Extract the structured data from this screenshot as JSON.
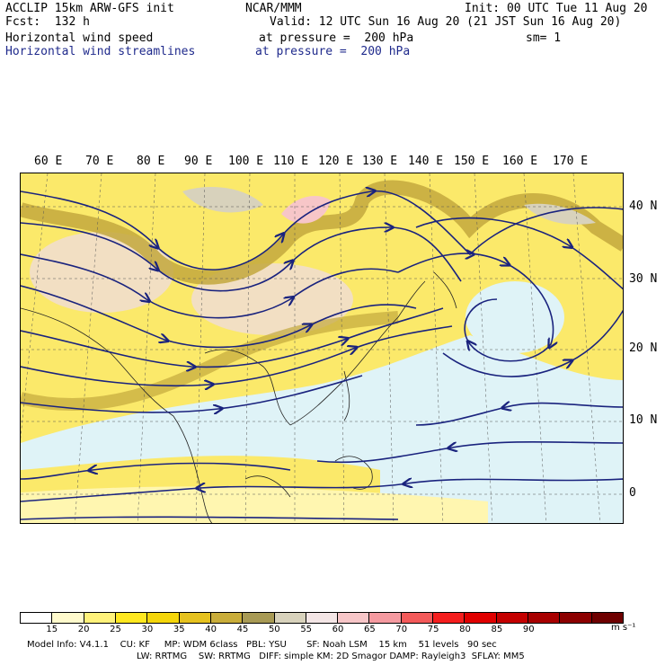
{
  "header": {
    "model_title": "ACCLIP 15km ARW-GFS init",
    "institution": "NCAR/MMM",
    "init": "Init: 00 UTC Tue 11 Aug 20",
    "fcst": "Fcst:  132 h",
    "valid": "Valid: 12 UTC Sun 16 Aug 20 (21 JST Sun 16 Aug 20)",
    "field1_name": "Horizontal wind speed",
    "field1_level": "at pressure =  200 hPa",
    "smoothing": "sm= 1",
    "field2_name": "Horizontal wind streamlines",
    "field2_level": "at pressure =  200 hPa"
  },
  "map": {
    "lon_labels": [
      "60 E",
      "70 E",
      "80 E",
      "90 E",
      "100 E",
      "110 E",
      "120 E",
      "130 E",
      "140 E",
      "150 E",
      "160 E",
      "170 E"
    ],
    "lat_labels": [
      "40 N",
      "30 N",
      "20 N",
      "10 N",
      "0"
    ]
  },
  "colorbar": {
    "labels": [
      "15",
      "20",
      "25",
      "30",
      "35",
      "40",
      "45",
      "50",
      "55",
      "60",
      "65",
      "70",
      "75",
      "80",
      "85",
      "90"
    ],
    "units": "m s⁻¹",
    "colors": [
      "#ffffff",
      "#fffacc",
      "#fff27a",
      "#ffe81f",
      "#f5d60a",
      "#e6c21f",
      "#c9ad3a",
      "#a89a55",
      "#d8d2bc",
      "#f4e6e6",
      "#f7c6c8",
      "#f59aa0",
      "#f45a5a",
      "#f51e1e",
      "#e00000",
      "#c40000",
      "#a80000",
      "#8c0000",
      "#6e0000"
    ]
  },
  "footer": {
    "line1": "Model Info: V4.1.1    CU: KF     MP: WDM 6class   PBL: YSU       SF: Noah LSM    15 km    51 levels   90 sec",
    "line2": "LW: RRTMG    SW: RRTMG   DIFF: simple KM: 2D Smagor DAMP: Rayleigh3  SFLAY: MM5"
  }
}
